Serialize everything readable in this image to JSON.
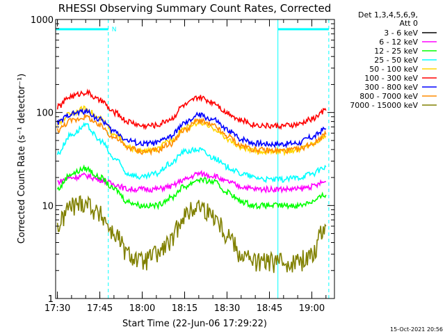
{
  "chart_data": {
    "type": "line",
    "title": "RHESSI Observing Summary Count Rates, Corrected",
    "ylabel": "Corrected Count Rate (s⁻¹ detector⁻¹)",
    "xlabel": "Start Time (22-Jun-06 17:29:22)",
    "yscale": "log",
    "ylim": [
      1,
      1000
    ],
    "xlim": [
      "17:29:22",
      "19:08:00"
    ],
    "yticks": [
      "1",
      "10",
      "100",
      "1000"
    ],
    "xticks": [
      "17:30",
      "17:45",
      "18:00",
      "18:15",
      "18:30",
      "18:45",
      "19:00"
    ],
    "legend_header": [
      "Det 1,3,4,5,6,9,",
      "Att 0"
    ],
    "legend_position": "right",
    "grid": false,
    "timestamp": "15-Oct-2021 20:56",
    "bar_label": "N",
    "night_intervals": [
      [
        "17:29:22",
        "17:48:00"
      ],
      [
        "18:48:00",
        "19:06:00"
      ]
    ],
    "x": [
      "17:30",
      "17:35",
      "17:40",
      "17:45",
      "17:50",
      "17:55",
      "18:00",
      "18:05",
      "18:10",
      "18:15",
      "18:20",
      "18:25",
      "18:30",
      "18:35",
      "18:40",
      "18:45",
      "18:50",
      "18:55",
      "19:00",
      "19:05"
    ],
    "series": [
      {
        "name": "3 - 6 keV",
        "color": "#000000",
        "values": [
          null,
          null,
          null,
          null,
          null,
          null,
          null,
          null,
          null,
          null,
          null,
          null,
          null,
          null,
          null,
          null,
          null,
          null,
          null,
          null
        ]
      },
      {
        "name": "6 - 12 keV",
        "color": "#ff00ff",
        "values": [
          18,
          20,
          21,
          19,
          17,
          15,
          15,
          15,
          16,
          19,
          22,
          21,
          18,
          16,
          15,
          15,
          15,
          15,
          16,
          18
        ]
      },
      {
        "name": "12 - 25 keV",
        "color": "#00ff00",
        "values": [
          15,
          22,
          25,
          20,
          15,
          11,
          10,
          10,
          12,
          16,
          19,
          18,
          14,
          11,
          10,
          10,
          10,
          10,
          11,
          13
        ]
      },
      {
        "name": "25 - 50 keV",
        "color": "#00ffff",
        "values": [
          36,
          58,
          72,
          50,
          32,
          22,
          20,
          22,
          28,
          38,
          40,
          33,
          26,
          22,
          20,
          19,
          19,
          20,
          22,
          26
        ]
      },
      {
        "name": "50 - 100 keV",
        "color": "#ffd700",
        "values": [
          75,
          100,
          110,
          85,
          60,
          42,
          38,
          40,
          50,
          68,
          78,
          68,
          52,
          42,
          38,
          38,
          38,
          40,
          46,
          56
        ]
      },
      {
        "name": "100 - 300 keV",
        "color": "#ff0000",
        "values": [
          115,
          150,
          165,
          135,
          100,
          80,
          72,
          73,
          85,
          120,
          145,
          130,
          100,
          82,
          74,
          72,
          72,
          74,
          85,
          105
        ]
      },
      {
        "name": "300 - 800 keV",
        "color": "#0000ff",
        "values": [
          78,
          97,
          103,
          84,
          63,
          50,
          46,
          47,
          55,
          76,
          94,
          84,
          65,
          52,
          47,
          46,
          46,
          47,
          54,
          67
        ]
      },
      {
        "name": "800 - 7000 keV",
        "color": "#ff8c00",
        "values": [
          65,
          82,
          90,
          72,
          54,
          42,
          38,
          39,
          46,
          65,
          82,
          72,
          56,
          44,
          40,
          39,
          39,
          40,
          46,
          58
        ]
      },
      {
        "name": "7000 - 15000 keV",
        "color": "#808000",
        "values": [
          6,
          10,
          11,
          8,
          5,
          3,
          2.5,
          3,
          4,
          8,
          10,
          8,
          5,
          3,
          2.5,
          2.5,
          2.5,
          2.5,
          3,
          6
        ]
      }
    ]
  }
}
